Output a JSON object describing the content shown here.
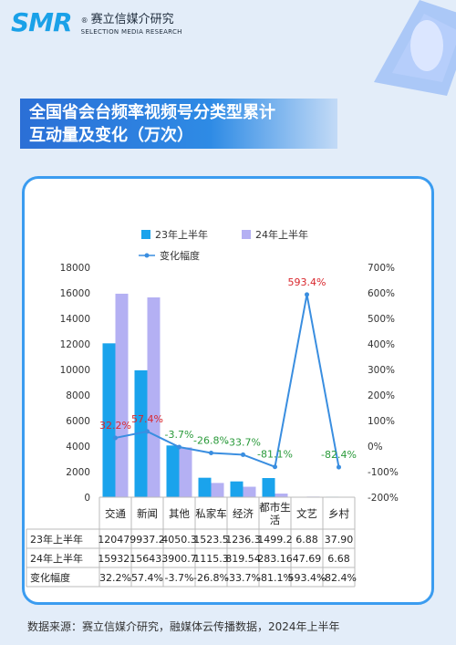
{
  "header": {
    "logo_mark": "SMR",
    "logo_reg": "®",
    "logo_cn": "赛立信媒介研究",
    "logo_en": "SELECTION MEDIA RESEARCH"
  },
  "title": {
    "line1": "全国省会台频率视频号分类型累计",
    "line2": "互动量及变化（万次）"
  },
  "footer": "数据来源：赛立信媒介研究，融媒体云传播数据，2024年上半年",
  "colors": {
    "bar23": "#1aa3ec",
    "bar24": "#b4b0f3",
    "line": "#3a8ee0",
    "pos": "#d9262c",
    "neg": "#2a9a3a"
  },
  "chart_data": {
    "type": "bar",
    "categories": [
      "交通",
      "新闻",
      "其他",
      "私家车",
      "经济",
      "都市生活",
      "文艺",
      "乡村"
    ],
    "series": [
      {
        "name": "23年上半年",
        "values": [
          12047.5,
          9937.2,
          4050.3,
          1523.5,
          1236.3,
          1499.2,
          6.88,
          37.9
        ]
      },
      {
        "name": "24年上半年",
        "values": [
          15932.5,
          15643.3,
          3900.7,
          1115.3,
          819.54,
          283.16,
          47.69,
          6.68
        ]
      },
      {
        "name": "变化幅度",
        "values": [
          32.2,
          57.4,
          -3.7,
          -26.8,
          -33.7,
          -81.1,
          593.4,
          -82.4
        ],
        "axis": "right",
        "type": "line"
      }
    ],
    "ylim": [
      0,
      18000
    ],
    "y2lim": [
      -200,
      700
    ],
    "y_ticks": [
      "0",
      "2000",
      "4000",
      "6000",
      "8000",
      "10000",
      "12000",
      "14000",
      "16000",
      "18000"
    ],
    "y2_ticks": [
      "-200%",
      "-100%",
      "0%",
      "100%",
      "200%",
      "300%",
      "400%",
      "500%",
      "600%",
      "700%"
    ],
    "point_labels": [
      "32.2%",
      "57.4%",
      "-3.7%",
      "-26.8%",
      "-33.7%",
      "-81.1%",
      "593.4%",
      "-82.4%"
    ],
    "table": {
      "row_labels": [
        "23年上半年",
        "24年上半年",
        "变化幅度"
      ],
      "rows": [
        [
          "12047.",
          "9937.2",
          "4050.3",
          "1523.5",
          "1236.3",
          "1499.2",
          "6.88",
          "37.90"
        ],
        [
          "15932.",
          "15643.",
          "3900.7",
          "1115.3",
          "819.54",
          "283.16",
          "47.69",
          "6.68"
        ],
        [
          "32.2%",
          "57.4%",
          "-3.7%",
          "-26.8%",
          "-33.7%",
          "-81.1%",
          "593.4%",
          "-82.4%"
        ]
      ]
    },
    "category_display": [
      "交通",
      "新闻",
      "其他",
      "私家车",
      "经济",
      "都市生\n活",
      "文艺",
      "乡村"
    ],
    "legend_position": "top-center",
    "grid": false
  }
}
